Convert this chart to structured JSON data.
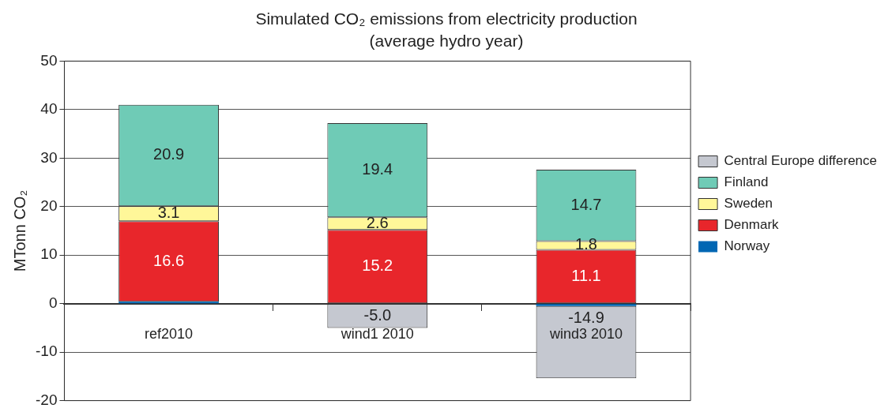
{
  "chart_data": {
    "type": "bar",
    "title": "Simulated CO₂ emissions from electricity production",
    "subtitle": "(average hydro year)",
    "ylabel": "MTonn CO₂",
    "categories": [
      "ref2010",
      "wind1 2010",
      "wind3 2010"
    ],
    "stacked": true,
    "series": [
      {
        "name": "Norway",
        "color": "#0066b3",
        "values": [
          0.4,
          0,
          -0.5
        ],
        "value_labels": [
          null,
          null,
          null
        ]
      },
      {
        "name": "Denmark",
        "color": "#e8262b",
        "values": [
          16.6,
          15.2,
          11.1
        ],
        "value_labels": [
          "16.6",
          "15.2",
          "11.1"
        ]
      },
      {
        "name": "Sweden",
        "color": "#fff799",
        "values": [
          3.1,
          2.6,
          1.8
        ],
        "value_labels": [
          "3.1",
          "2.6",
          "1.8"
        ]
      },
      {
        "name": "Finland",
        "color": "#6fcbb6",
        "values": [
          20.9,
          19.4,
          14.7
        ],
        "value_labels": [
          "20.9",
          "19.4",
          "14.7"
        ]
      },
      {
        "name": "Central Europe difference",
        "color": "#c5c8d0",
        "values": [
          null,
          -5.0,
          -14.9
        ],
        "value_labels": [
          null,
          "-5.0",
          "-14.9"
        ]
      }
    ],
    "ylim": [
      -20,
      50
    ],
    "yticks": [
      -20,
      -10,
      0,
      10,
      20,
      30,
      40,
      50
    ],
    "grid": "y",
    "legend": "right"
  }
}
